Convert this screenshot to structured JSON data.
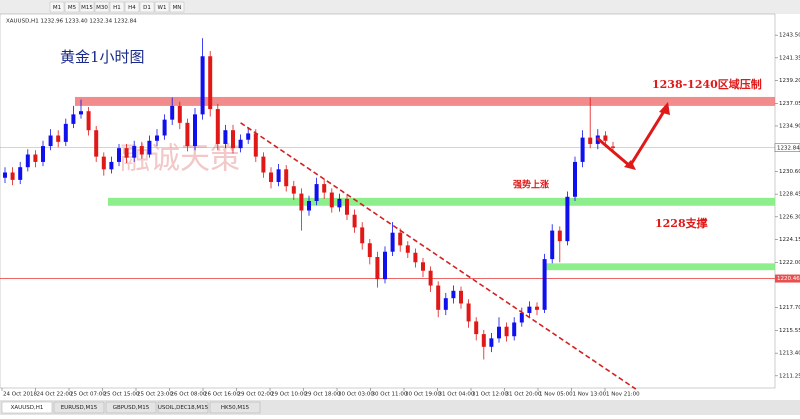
{
  "chart_data": {
    "type": "candlestick",
    "header": "XAUUSD,H1  1232.96 1233.40 1232.34 1232.84",
    "toolbar": [
      "M1",
      "M5",
      "M15",
      "M30",
      "H1",
      "H4",
      "D1",
      "W1",
      "MN"
    ],
    "tabs": [
      "XAUUSD,H1",
      "EURUSD,M15",
      "GBPUSD,M15",
      "USOIL,DEC18,M15",
      "HK50,M15"
    ],
    "title": "黄金1小时图",
    "watermark": "融诚天策",
    "annotations": [
      "1238-1240区域压制",
      "强势上涨",
      "1228支撑"
    ],
    "up_color": "#1010ee",
    "down_color": "#e01818",
    "open": [
      1230.0,
      1230.5,
      1229.8,
      1231.0,
      1232.2,
      1231.5,
      1233.0,
      1234.0,
      1233.4,
      1235.1,
      1236.0,
      1236.3,
      1234.5,
      1232.0,
      1230.8,
      1231.5,
      1232.8,
      1231.9,
      1233.0,
      1232.2,
      1233.5,
      1234.0,
      1235.5,
      1236.8,
      1235.2,
      1233.0,
      1236.0,
      1241.5,
      1236.5,
      1233.2,
      1234.5,
      1232.8,
      1233.6,
      1234.2,
      1232.0,
      1230.5,
      1229.6,
      1230.8,
      1229.2,
      1228.5,
      1226.9,
      1227.8,
      1229.4,
      1228.6,
      1227.2,
      1228.0,
      1226.5,
      1225.3,
      1223.8,
      1222.5,
      1220.4,
      1223.0,
      1224.8,
      1223.6,
      1222.9,
      1222.0,
      1221.2,
      1219.8,
      1217.5,
      1218.6,
      1219.3,
      1218.1,
      1216.4,
      1215.2,
      1214.0,
      1214.8,
      1215.9,
      1215.0,
      1216.3,
      1217.2,
      1217.8,
      1217.5,
      1222.3,
      1225.0,
      1224.0,
      1228.2,
      1231.5,
      1233.8,
      1233.2,
      1234.0,
      1232.96
    ],
    "high": [
      1231.0,
      1231.0,
      1231.5,
      1232.7,
      1232.6,
      1233.5,
      1234.6,
      1234.5,
      1235.6,
      1236.8,
      1237.4,
      1236.7,
      1234.9,
      1232.4,
      1232.0,
      1233.2,
      1233.2,
      1233.5,
      1233.4,
      1234.0,
      1234.6,
      1236.0,
      1237.6,
      1237.2,
      1235.6,
      1236.6,
      1243.2,
      1242.0,
      1237.0,
      1235.0,
      1235.0,
      1234.1,
      1234.8,
      1234.6,
      1232.4,
      1231.0,
      1231.3,
      1231.2,
      1229.7,
      1229.0,
      1228.3,
      1230.0,
      1229.9,
      1229.0,
      1228.5,
      1228.4,
      1227.0,
      1225.8,
      1224.2,
      1223.0,
      1223.5,
      1225.8,
      1225.2,
      1224.0,
      1223.3,
      1222.4,
      1221.6,
      1220.2,
      1219.1,
      1219.8,
      1219.7,
      1218.5,
      1216.8,
      1215.6,
      1215.3,
      1216.8,
      1216.3,
      1216.8,
      1217.7,
      1218.3,
      1218.2,
      1222.8,
      1225.6,
      1225.4,
      1228.7,
      1232.0,
      1234.5,
      1237.6,
      1234.6,
      1234.4,
      1233.4
    ],
    "low": [
      1229.5,
      1229.3,
      1229.4,
      1230.6,
      1231.0,
      1231.1,
      1232.6,
      1232.9,
      1233.0,
      1234.7,
      1235.6,
      1234.0,
      1231.5,
      1230.2,
      1230.4,
      1231.1,
      1231.4,
      1231.5,
      1231.8,
      1231.9,
      1233.0,
      1233.6,
      1235.0,
      1234.6,
      1232.5,
      1232.6,
      1235.5,
      1235.8,
      1232.6,
      1232.8,
      1232.3,
      1232.4,
      1233.2,
      1231.5,
      1230.0,
      1229.0,
      1229.2,
      1228.7,
      1227.9,
      1225.0,
      1226.4,
      1227.4,
      1228.0,
      1226.7,
      1226.8,
      1226.0,
      1224.8,
      1223.2,
      1221.8,
      1219.6,
      1220.0,
      1222.6,
      1223.0,
      1222.4,
      1221.5,
      1220.6,
      1219.2,
      1216.8,
      1217.0,
      1218.1,
      1217.6,
      1215.8,
      1214.6,
      1212.8,
      1213.5,
      1214.4,
      1214.5,
      1214.6,
      1215.9,
      1216.8,
      1217.0,
      1217.2,
      1221.9,
      1222.0,
      1223.6,
      1227.8,
      1231.0,
      1232.8,
      1232.7,
      1233.0,
      1232.34
    ],
    "close": [
      1230.5,
      1229.8,
      1231.0,
      1232.2,
      1231.5,
      1233.0,
      1234.0,
      1233.4,
      1235.1,
      1236.0,
      1236.3,
      1234.5,
      1232.0,
      1230.8,
      1231.5,
      1232.8,
      1231.9,
      1233.0,
      1232.2,
      1233.5,
      1234.0,
      1235.5,
      1236.8,
      1235.2,
      1233.0,
      1236.0,
      1241.5,
      1236.5,
      1233.2,
      1234.5,
      1232.8,
      1233.6,
      1234.2,
      1232.0,
      1230.5,
      1229.6,
      1230.8,
      1229.2,
      1228.5,
      1226.9,
      1227.8,
      1229.4,
      1228.6,
      1227.2,
      1228.0,
      1226.5,
      1225.3,
      1223.8,
      1222.5,
      1220.4,
      1223.0,
      1224.8,
      1223.6,
      1222.9,
      1222.0,
      1221.2,
      1219.8,
      1217.5,
      1218.6,
      1219.3,
      1218.1,
      1216.4,
      1215.2,
      1214.0,
      1214.8,
      1215.9,
      1215.0,
      1216.3,
      1217.2,
      1217.8,
      1217.5,
      1222.3,
      1225.0,
      1224.0,
      1228.2,
      1231.5,
      1233.8,
      1233.2,
      1234.0,
      1233.5,
      1232.84
    ],
    "x_labels": [
      "24 Oct 2018",
      "24 Oct 22:00",
      "25 Oct 07:00",
      "25 Oct 15:00",
      "25 Oct 23:00",
      "26 Oct 08:00",
      "26 Oct 16:00",
      "29 Oct 02:00",
      "29 Oct 10:00",
      "29 Oct 18:00",
      "30 Oct 03:00",
      "30 Oct 11:00",
      "30 Oct 19:00",
      "31 Oct 04:00",
      "31 Oct 12:00",
      "31 Oct 20:00",
      "1 Nov 05:00",
      "1 Nov 13:00",
      "1 Nov 21:00"
    ],
    "ylim": [
      1210.1,
      1245.5
    ],
    "yticks": [
      {
        "value": 1243.5,
        "label": "1243.50"
      },
      {
        "value": 1241.35,
        "label": "1241.35"
      },
      {
        "value": 1239.2,
        "label": "1239.20"
      },
      {
        "value": 1237.05,
        "label": "1237.05"
      },
      {
        "value": 1234.9,
        "label": "1234.90"
      },
      {
        "value": 1230.6,
        "label": "1230.60"
      },
      {
        "value": 1228.45,
        "label": "1228.45"
      },
      {
        "value": 1226.3,
        "label": "1226.30"
      },
      {
        "value": 1224.15,
        "label": "1224.15"
      },
      {
        "value": 1222.0,
        "label": "1222.00"
      },
      {
        "value": 1217.7,
        "label": "1217.70"
      },
      {
        "value": 1215.55,
        "label": "1215.55"
      },
      {
        "value": 1213.4,
        "label": "1213.40"
      },
      {
        "value": 1211.25,
        "label": "1211.25"
      }
    ],
    "zones": [
      {
        "low": 1236.8,
        "high": 1237.65,
        "color": "#f07878"
      },
      {
        "low": 1227.35,
        "high": 1228.1,
        "color": "#78ec78"
      },
      {
        "low": 1221.25,
        "high": 1221.9,
        "color": "#78ec78"
      }
    ],
    "price_lines": [
      {
        "value": 1220.46,
        "color": "#e85050"
      }
    ],
    "trend_line": {
      "start": [
        31,
        1235.2
      ],
      "end": [
        83,
        1210.0
      ]
    }
  }
}
